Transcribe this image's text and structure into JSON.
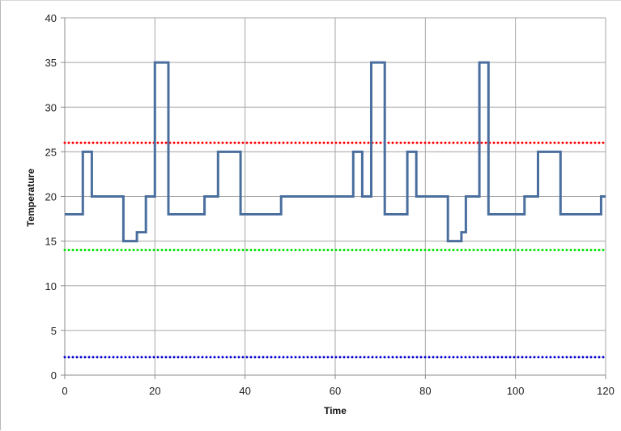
{
  "chart_data": {
    "type": "line",
    "title": "",
    "xlabel": "Time",
    "ylabel": "Temperature",
    "xlim": [
      0,
      120
    ],
    "ylim": [
      0,
      40
    ],
    "x_ticks": [
      0,
      20,
      40,
      60,
      80,
      100,
      120
    ],
    "y_ticks": [
      0,
      5,
      10,
      15,
      20,
      25,
      30,
      35,
      40
    ],
    "grid": true,
    "legend": "none",
    "series": [
      {
        "style": "step",
        "color": "#4a6f9e",
        "x": [
          0,
          4,
          4,
          6,
          6,
          13,
          13,
          16,
          16,
          18,
          18,
          20,
          20,
          23,
          23,
          31,
          31,
          34,
          34,
          39,
          39,
          48,
          48,
          64,
          64,
          66,
          66,
          68,
          68,
          71,
          71,
          76,
          76,
          78,
          78,
          85,
          85,
          88,
          88,
          89,
          89,
          92,
          92,
          94,
          94,
          102,
          102,
          105,
          105,
          110,
          110,
          119,
          119,
          120
        ],
        "y": [
          18,
          18,
          25,
          25,
          20,
          20,
          15,
          15,
          16,
          16,
          20,
          20,
          35,
          35,
          18,
          18,
          20,
          20,
          25,
          25,
          18,
          18,
          20,
          20,
          25,
          25,
          20,
          20,
          35,
          35,
          18,
          18,
          25,
          25,
          20,
          20,
          15,
          15,
          16,
          16,
          20,
          20,
          35,
          35,
          18,
          18,
          20,
          20,
          25,
          25,
          18,
          18,
          20,
          20
        ]
      },
      {
        "style": "dotted",
        "color": "#ff0000",
        "x": [
          0,
          120
        ],
        "y": [
          26,
          26
        ]
      },
      {
        "style": "dotted",
        "color": "#00e000",
        "x": [
          0,
          120
        ],
        "y": [
          14,
          14
        ]
      },
      {
        "style": "dotted",
        "color": "#0000cc",
        "x": [
          0,
          120
        ],
        "y": [
          2,
          2
        ]
      }
    ]
  }
}
